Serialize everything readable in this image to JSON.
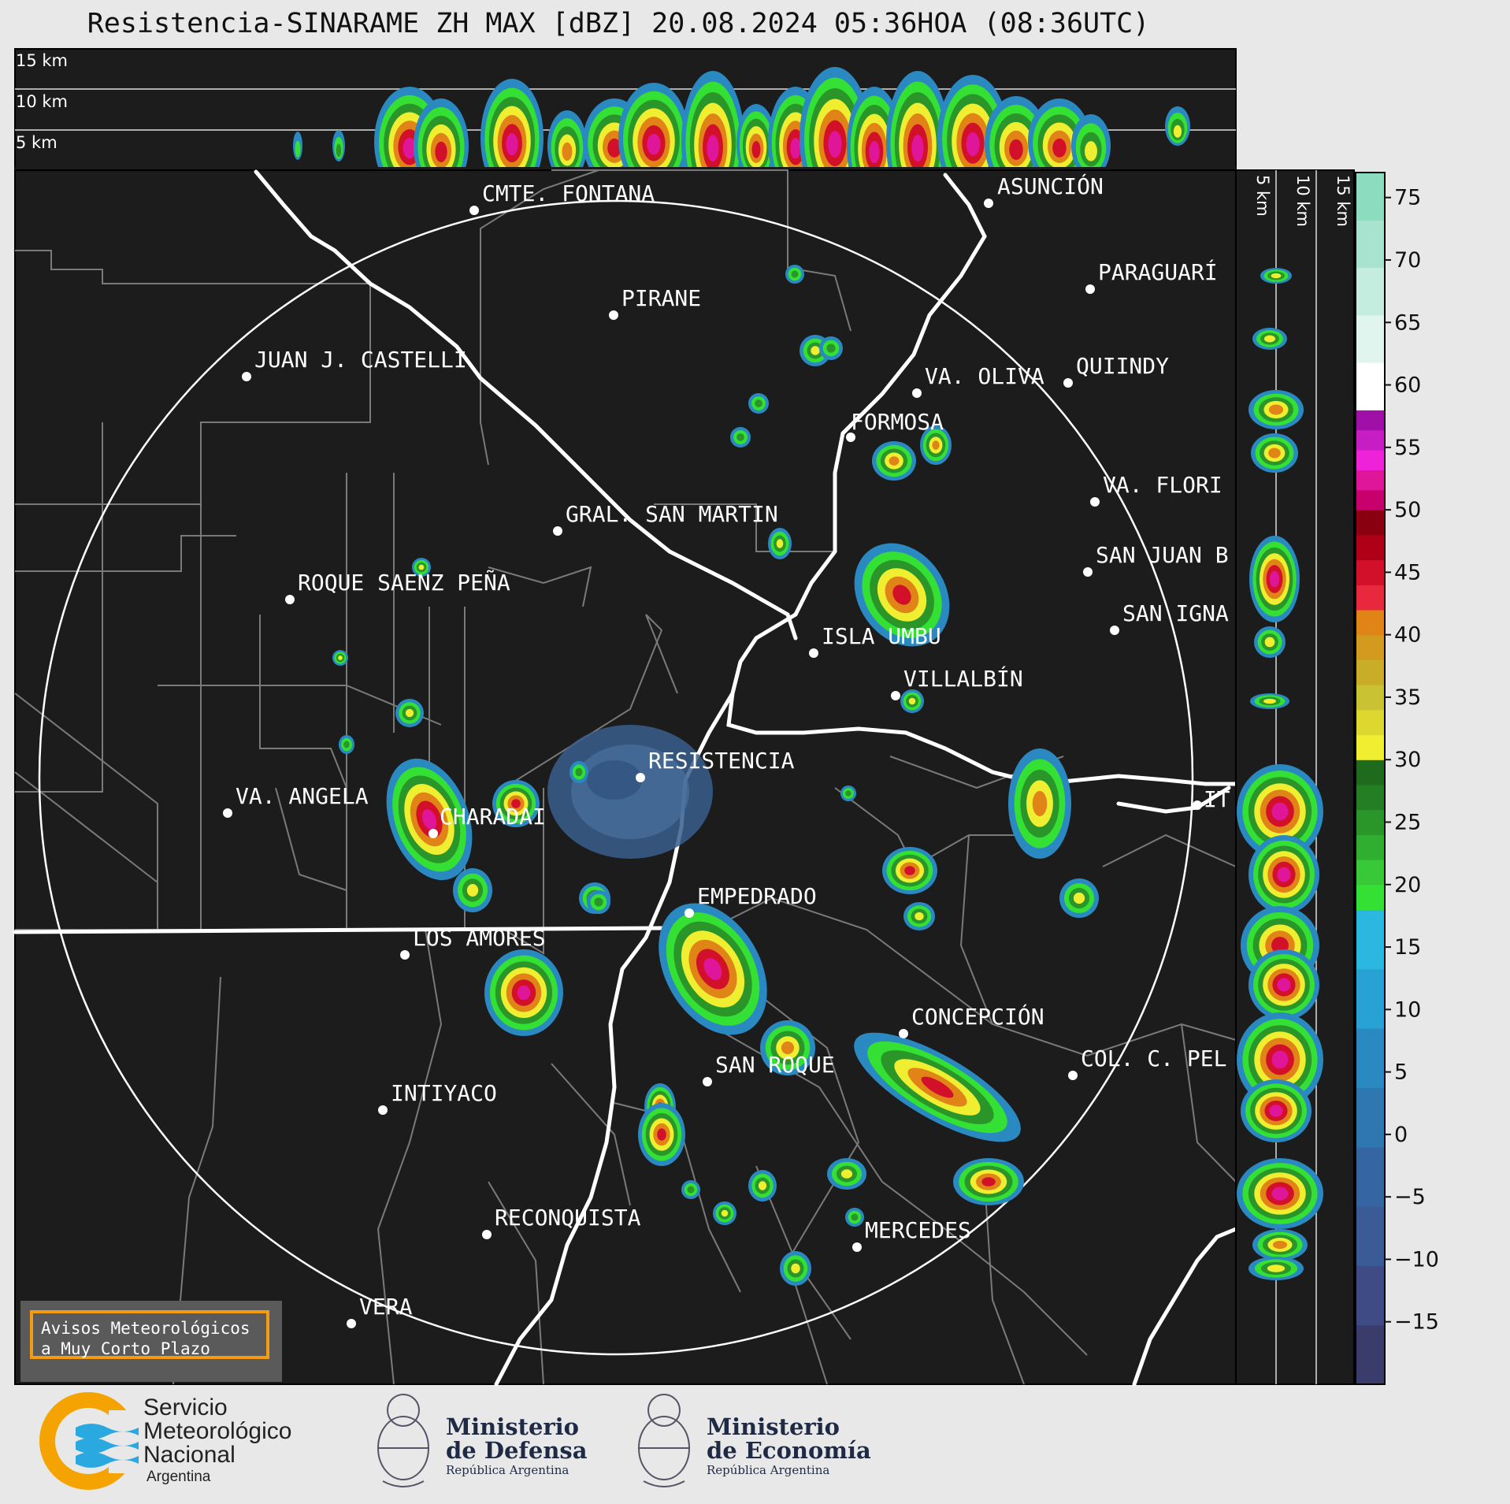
{
  "title": "Resistencia-SINARAME ZH MAX [dBZ] 20.08.2024 05:36HOA (08:36UTC)",
  "top_panel": {
    "altitude_labels": [
      "15 km",
      "10 km",
      "5 km"
    ]
  },
  "side_panel": {
    "altitude_labels": [
      "5 km",
      "10 km",
      "15 km"
    ]
  },
  "cities": [
    {
      "name": "CMTE. FONTANA"
    },
    {
      "name": "ASUNCIÓN"
    },
    {
      "name": "PIRANE"
    },
    {
      "name": "PARAGUARÍ"
    },
    {
      "name": "JUAN J. CASTELLI"
    },
    {
      "name": "VA. OLIVA"
    },
    {
      "name": "QUIINDY"
    },
    {
      "name": "FORMOSA"
    },
    {
      "name": "VA. FLORI"
    },
    {
      "name": "GRAL. SAN MARTIN"
    },
    {
      "name": "SAN JUAN B"
    },
    {
      "name": "ROQUE SAENZ PEÑA"
    },
    {
      "name": "SAN IGNA"
    },
    {
      "name": "ISLA UMBU"
    },
    {
      "name": "VILLALBÍN"
    },
    {
      "name": "RESISTENCIA"
    },
    {
      "name": "VA. ANGELA"
    },
    {
      "name": "CHARADAI"
    },
    {
      "name": "IT"
    },
    {
      "name": "EMPEDRADO"
    },
    {
      "name": "LOS AMORES"
    },
    {
      "name": "CONCEPCIÓN"
    },
    {
      "name": "SAN ROQUE"
    },
    {
      "name": "COL. C. PEL"
    },
    {
      "name": "INTIYACO"
    },
    {
      "name": "RECONQUISTA"
    },
    {
      "name": "MERCEDES"
    },
    {
      "name": "VERA"
    }
  ],
  "colorbar": {
    "unit": "dBZ",
    "ticks": [
      "75",
      "70",
      "65",
      "60",
      "55",
      "50",
      "45",
      "40",
      "35",
      "30",
      "25",
      "20",
      "15",
      "10",
      "5",
      "0",
      "−5",
      "−10",
      "−15"
    ],
    "bands": [
      {
        "from": -20,
        "to": 18,
        "colors": [
          "#3a3d6b",
          "#3f4b85",
          "#3a5b95",
          "#3566a2",
          "#2f77b0",
          "#2a89c0",
          "#28a2d4",
          "#2ab7e0"
        ]
      },
      {
        "from": 18,
        "to": 30,
        "colors": [
          "#35e035",
          "#38c838",
          "#2fae2f",
          "#2a962a",
          "#247e24",
          "#1e6b1e"
        ]
      },
      {
        "from": 30,
        "to": 42,
        "colors": [
          "#f0ee30",
          "#dcd830",
          "#c9c232",
          "#c9ac28",
          "#d39a20",
          "#e08418"
        ]
      },
      {
        "from": 42,
        "to": 50,
        "colors": [
          "#e8283c",
          "#d2102a",
          "#b00018",
          "#8a0010"
        ]
      },
      {
        "from": 50,
        "to": 58,
        "colors": [
          "#c8006e",
          "#e0169a",
          "#ee22d8",
          "#c61ec4",
          "#a010a8"
        ]
      },
      {
        "from": 58,
        "to": 77,
        "colors": [
          "#ffffff",
          "#dff5ee",
          "#c4ecdf",
          "#a8e3cf",
          "#8cdcc0"
        ]
      }
    ]
  },
  "avisos": {
    "line1": "Avisos Meteorológicos",
    "line2": "a Muy Corto Plazo"
  },
  "logos": {
    "smn": {
      "line1": "Servicio",
      "line2": "Meteorológico",
      "line3": "Nacional",
      "country": "Argentina",
      "colors": {
        "ring": "#f5a300",
        "waves": "#2aa8e0"
      }
    },
    "defensa": {
      "line1": "Ministerio",
      "line2": "de Defensa",
      "sub": "República Argentina"
    },
    "economia": {
      "line1": "Ministerio",
      "line2": "de Economía",
      "sub": "República Argentina"
    }
  }
}
